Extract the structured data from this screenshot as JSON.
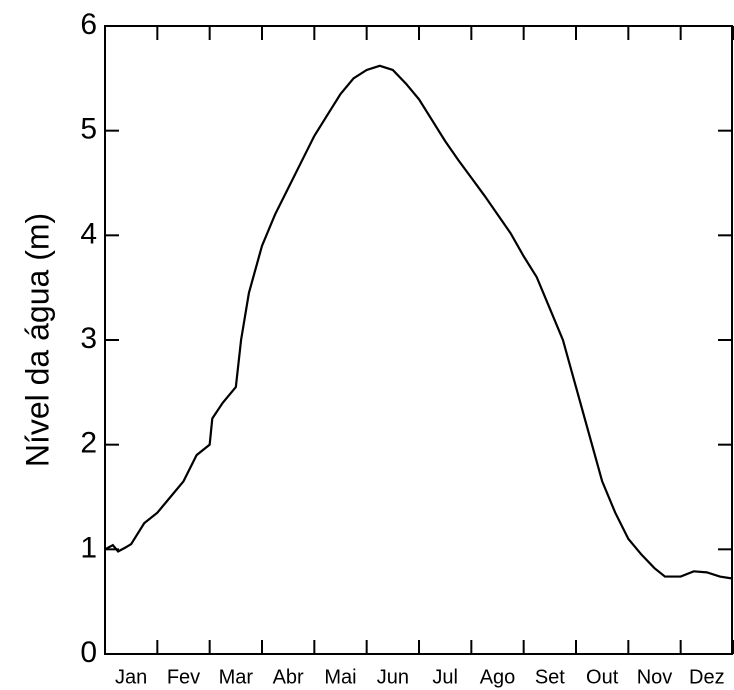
{
  "chart_data": {
    "type": "line",
    "ylabel": "Nível da água (m)",
    "categories": [
      "Jan",
      "Fev",
      "Mar",
      "Abr",
      "Mai",
      "Jun",
      "Jul",
      "Ago",
      "Set",
      "Out",
      "Nov",
      "Dez"
    ],
    "x": [
      0,
      0.15,
      0.25,
      0.4,
      0.5,
      0.75,
      1.0,
      1.25,
      1.5,
      1.75,
      2.0,
      2.05,
      2.25,
      2.5,
      2.6,
      2.75,
      3.0,
      3.25,
      3.5,
      3.75,
      4.0,
      4.25,
      4.5,
      4.75,
      5.0,
      5.25,
      5.5,
      5.75,
      6.0,
      6.25,
      6.5,
      6.75,
      7.0,
      7.25,
      7.5,
      7.75,
      8.0,
      8.25,
      8.5,
      8.75,
      9.0,
      9.25,
      9.5,
      9.75,
      10.0,
      10.25,
      10.5,
      10.7,
      11.0,
      11.25,
      11.5,
      11.75,
      12
    ],
    "series": [
      {
        "color": "#000000",
        "values": [
          1.0,
          1.04,
          0.98,
          1.02,
          1.05,
          1.25,
          1.35,
          1.5,
          1.65,
          1.9,
          2.0,
          2.25,
          2.4,
          2.55,
          3.0,
          3.45,
          3.9,
          4.2,
          4.45,
          4.7,
          4.95,
          5.15,
          5.35,
          5.5,
          5.58,
          5.62,
          5.58,
          5.45,
          5.3,
          5.1,
          4.9,
          4.72,
          4.55,
          4.38,
          4.2,
          4.02,
          3.8,
          3.6,
          3.3,
          3.0,
          2.55,
          2.1,
          1.65,
          1.35,
          1.1,
          0.95,
          0.82,
          0.74,
          0.74,
          0.79,
          0.78,
          0.74,
          0.72
        ]
      }
    ],
    "xlim": [
      0,
      12
    ],
    "ylim": [
      0,
      6
    ],
    "yticks": [
      0,
      1,
      2,
      3,
      4,
      5,
      6
    ]
  }
}
